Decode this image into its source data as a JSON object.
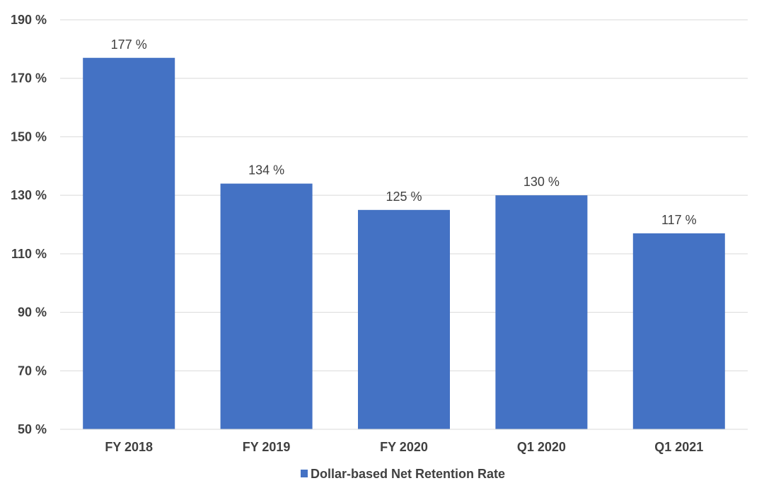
{
  "chart_data": {
    "type": "bar",
    "categories": [
      "FY 2018",
      "FY 2019",
      "FY 2020",
      "Q1 2020",
      "Q1 2021"
    ],
    "series": [
      {
        "name": "Dollar-based Net Retention Rate",
        "values": [
          177,
          134,
          125,
          130,
          117
        ],
        "color": "#4472c4"
      }
    ],
    "data_labels": [
      "177 %",
      "134 %",
      "125 %",
      "130 %",
      "117 %"
    ],
    "y_ticks": [
      50,
      70,
      90,
      110,
      130,
      150,
      170,
      190
    ],
    "y_tick_labels": [
      "50 %",
      "70 %",
      "90 %",
      "110 %",
      "130 %",
      "150 %",
      "170 %",
      "190 %"
    ],
    "ylim": [
      50,
      190
    ],
    "title": "",
    "xlabel": "",
    "ylabel": "",
    "grid": true,
    "legend_position": "bottom"
  }
}
